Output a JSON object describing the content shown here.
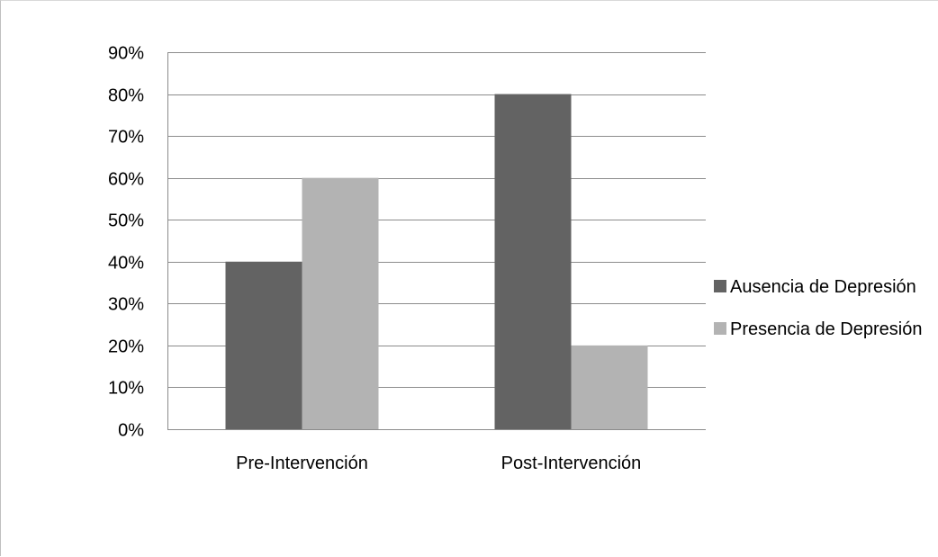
{
  "chart_data": {
    "type": "bar",
    "title": "",
    "xlabel": "",
    "ylabel": "",
    "categories": [
      "Pre-Intervención",
      "Post-Intervención"
    ],
    "series": [
      {
        "name": "Ausencia de Depresión",
        "values": [
          40,
          80
        ],
        "color": "#636363"
      },
      {
        "name": "Presencia de Depresión",
        "values": [
          60,
          20
        ],
        "color": "#b3b3b3"
      }
    ],
    "ylim": [
      0,
      90
    ],
    "yticks": [
      0,
      10,
      20,
      30,
      40,
      50,
      60,
      70,
      80,
      90
    ],
    "ytick_format": "percent",
    "grid": true,
    "legend_position": "right"
  }
}
